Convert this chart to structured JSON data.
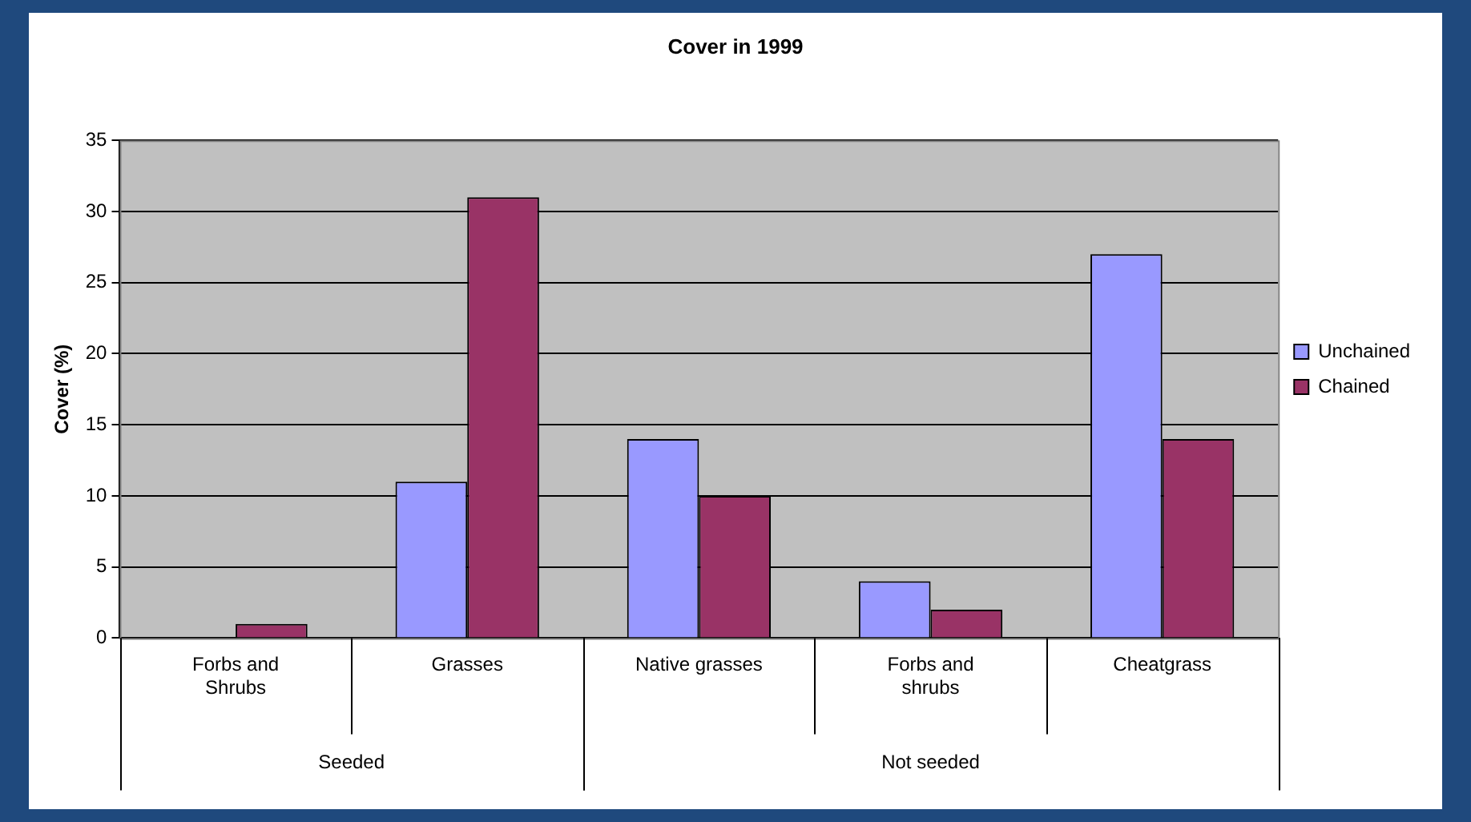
{
  "chart_data": {
    "type": "bar",
    "title": "Cover in 1999",
    "ylabel": "Cover (%)",
    "categories": [
      "Forbs and Shrubs",
      "Grasses",
      "Native grasses",
      "Forbs and shrubs",
      "Cheatgrass"
    ],
    "series": [
      {
        "name": "Unchained",
        "color": "#9999ff",
        "values": [
          0,
          11,
          14,
          4,
          27
        ]
      },
      {
        "name": "Chained",
        "color": "#993366",
        "values": [
          1,
          31,
          10,
          2,
          14
        ]
      }
    ],
    "ylim": [
      0,
      35
    ],
    "yticks": [
      0,
      5,
      10,
      15,
      20,
      25,
      30,
      35
    ],
    "grid": "y",
    "legend": "right",
    "annotations": [
      "Seeded",
      "Not seeded"
    ]
  }
}
